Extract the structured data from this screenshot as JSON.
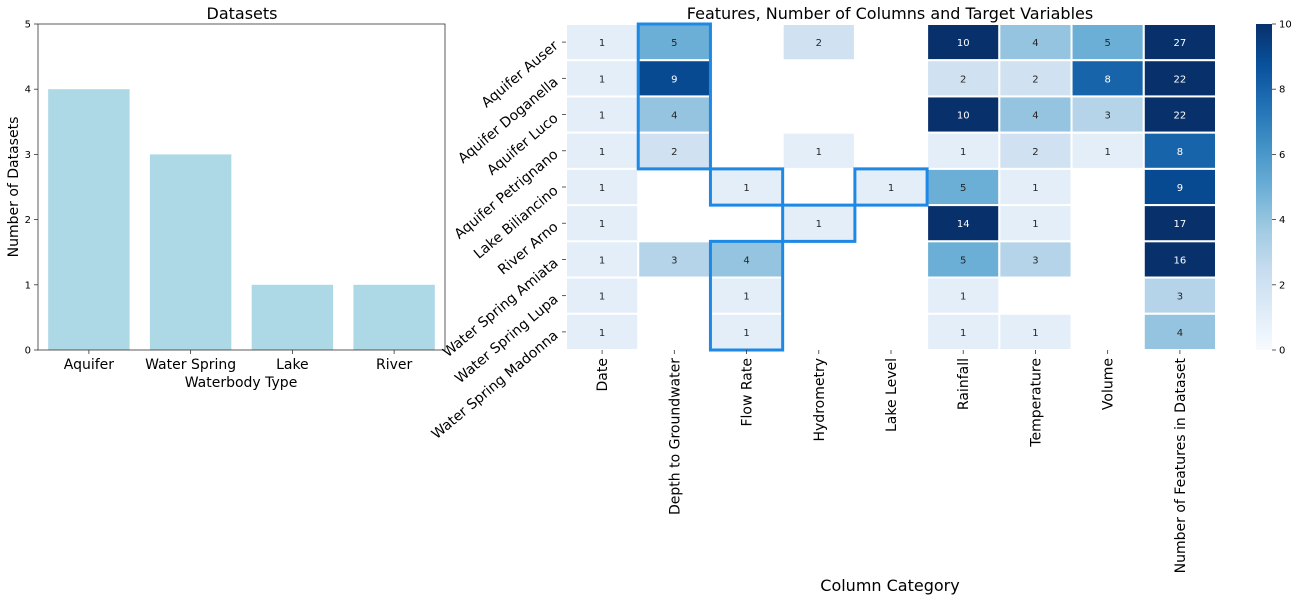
{
  "chart_data": [
    {
      "type": "bar",
      "title": "Datasets",
      "xlabel": "Waterbody Type",
      "ylabel": "Number of Datasets",
      "categories": [
        "Aquifer",
        "Water Spring",
        "Lake",
        "River"
      ],
      "values": [
        4,
        3,
        1,
        1
      ],
      "ylim": [
        0,
        5
      ],
      "yticks": [
        "0",
        "1",
        "2",
        "3",
        "4",
        "5"
      ],
      "bar_color": "#add8e6",
      "grid": false
    },
    {
      "type": "heatmap",
      "title": "Features, Number of Columns and Target Variables",
      "xlabel": "Column Category",
      "ylabel": "",
      "columns": [
        "Date",
        "Depth to Groundwater",
        "Flow Rate",
        "Hydrometry",
        "Lake Level",
        "Rainfall",
        "Temperature",
        "Volume",
        "Number of Features in Dataset"
      ],
      "rows": [
        "Aquifer Auser",
        "Aquifer Doganella",
        "Aquifer Luco",
        "Aquifer Petrignano",
        "Lake Biliancino",
        "River Arno",
        "Water Spring Amiata",
        "Water Spring Lupa",
        "Water Spring Madonna"
      ],
      "values": [
        [
          1,
          5,
          null,
          2,
          null,
          10,
          4,
          5,
          27
        ],
        [
          1,
          9,
          null,
          null,
          null,
          2,
          2,
          8,
          22
        ],
        [
          1,
          4,
          null,
          null,
          null,
          10,
          4,
          3,
          22
        ],
        [
          1,
          2,
          null,
          1,
          null,
          1,
          2,
          1,
          8
        ],
        [
          1,
          null,
          1,
          null,
          1,
          5,
          1,
          null,
          9
        ],
        [
          1,
          null,
          null,
          1,
          null,
          14,
          1,
          null,
          17
        ],
        [
          1,
          3,
          4,
          null,
          null,
          5,
          3,
          null,
          16
        ],
        [
          1,
          null,
          1,
          null,
          null,
          1,
          null,
          null,
          3
        ],
        [
          1,
          null,
          1,
          null,
          null,
          1,
          1,
          null,
          4
        ]
      ],
      "colormap": "Blues",
      "vmin": 0,
      "vmax": 10,
      "colorbar_ticks": [
        "0",
        "2",
        "4",
        "6",
        "8",
        "10"
      ],
      "highlight_color": "#1e88e5",
      "target_cells": [
        [
          0,
          1
        ],
        [
          1,
          1
        ],
        [
          2,
          1
        ],
        [
          3,
          1
        ],
        [
          4,
          2
        ],
        [
          4,
          4
        ],
        [
          5,
          3
        ],
        [
          6,
          2
        ],
        [
          7,
          2
        ],
        [
          8,
          2
        ]
      ]
    }
  ]
}
